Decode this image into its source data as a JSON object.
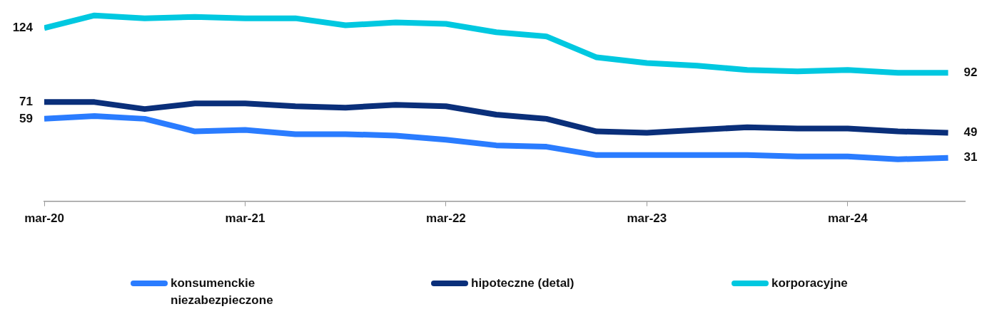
{
  "chart_data": {
    "type": "line",
    "x": [
      "2020-03",
      "2020-06",
      "2020-09",
      "2020-12",
      "2021-03",
      "2021-06",
      "2021-09",
      "2021-12",
      "2022-03",
      "2022-06",
      "2022-09",
      "2022-12",
      "2023-03",
      "2023-06",
      "2023-09",
      "2023-12",
      "2024-03",
      "2024-06",
      "2024-09"
    ],
    "xlim": [
      "2020-03",
      "2024-10"
    ],
    "xticks": [
      {
        "value": "2020-03",
        "label": "mar-20"
      },
      {
        "value": "2021-03",
        "label": "mar-21"
      },
      {
        "value": "2022-03",
        "label": "mar-22"
      },
      {
        "value": "2023-03",
        "label": "mar-23"
      },
      {
        "value": "2024-03",
        "label": "mar-24"
      }
    ],
    "tick_labels": "x",
    "grid": false,
    "legend": "bottom",
    "marker": "none",
    "line_style": "solid",
    "series": [
      {
        "name": "konsumenckie niezabezpieczone",
        "color": "#2a7cff",
        "values": [
          59,
          61,
          59,
          50,
          51,
          48,
          48,
          47,
          44,
          40,
          39,
          33,
          33,
          33,
          33,
          32,
          32,
          30,
          31
        ],
        "value_labels": [
          "59",
          null,
          null,
          null,
          null,
          null,
          null,
          null,
          null,
          null,
          null,
          null,
          null,
          null,
          null,
          null,
          null,
          null,
          "31"
        ]
      },
      {
        "name": "hipoteczne (detal)",
        "color": "#0a2f7a",
        "values": [
          71,
          71,
          66,
          70,
          70,
          68,
          67,
          69,
          68,
          62,
          59,
          50,
          49,
          51,
          53,
          52,
          52,
          50,
          49
        ],
        "value_labels": [
          "71",
          null,
          null,
          null,
          null,
          null,
          null,
          null,
          null,
          null,
          null,
          null,
          null,
          null,
          null,
          null,
          null,
          null,
          "49"
        ]
      },
      {
        "name": "korporacyjne",
        "color": "#00c8e0",
        "values": [
          124,
          133,
          131,
          132,
          131,
          131,
          126,
          128,
          127,
          121,
          118,
          103,
          99,
          97,
          94,
          93,
          94,
          92,
          92
        ],
        "value_labels": [
          "124",
          null,
          null,
          null,
          null,
          null,
          null,
          null,
          null,
          null,
          null,
          null,
          null,
          null,
          null,
          null,
          null,
          null,
          "92"
        ]
      }
    ]
  }
}
